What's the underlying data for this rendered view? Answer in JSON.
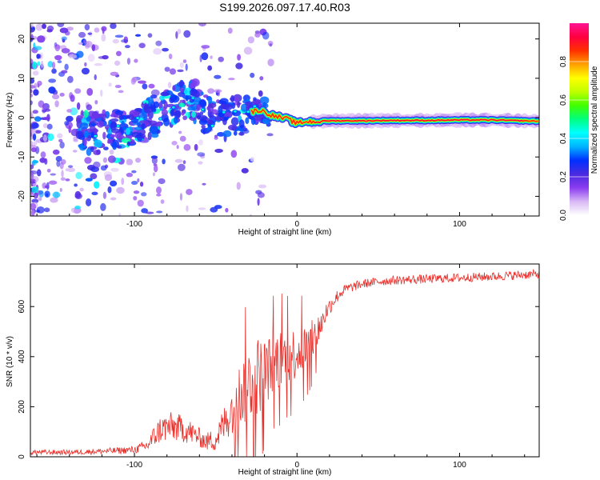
{
  "title": "S199.2026.097.17.40.R03",
  "colors": {
    "signal_line": "#e8302b",
    "axis": "#000000",
    "background": "#ffffff"
  },
  "chart_data": [
    {
      "type": "heatmap",
      "title": "S199.2026.097.17.40.R03",
      "xlabel": "Height of straight line (km)",
      "ylabel": "Frequency (Hz)",
      "xlim": [
        -164,
        149
      ],
      "ylim": [
        -25,
        24
      ],
      "x_ticks": [
        -100,
        0,
        100
      ],
      "x_tick_labels": [
        "-100",
        "0",
        "100"
      ],
      "y_ticks": [
        -20,
        -10,
        0,
        10,
        20
      ],
      "y_tick_labels": [
        "-20",
        "-10",
        "0",
        "10",
        "20"
      ],
      "colorbar": {
        "label": "Normalized spectral amplitude",
        "range": [
          0,
          1
        ],
        "ticks": [
          0,
          0.2,
          0.4,
          0.6,
          0.8
        ],
        "tick_labels": [
          "0.0",
          "0.2",
          "0.4",
          "0.6",
          "0.8"
        ],
        "colormap": [
          "#ffffff",
          "#d8b8f5",
          "#8a3cf0",
          "#4a2ae0",
          "#0030ff",
          "#00b4ff",
          "#00ffff",
          "#00ff80",
          "#40ff00",
          "#c0ff00",
          "#ffff00",
          "#ffa000",
          "#ff3000",
          "#ff0040",
          "#ff1493"
        ]
      },
      "ridge": {
        "description_points_x": [
          -125,
          -110,
          -95,
          -80,
          -65,
          -50,
          -40,
          -30,
          -25,
          -20,
          -15,
          -10,
          -5,
          0,
          5,
          10,
          20,
          40,
          60,
          80,
          100,
          120,
          140,
          148
        ],
        "description_points_y": [
          -4,
          -3,
          -1,
          2,
          5,
          -1,
          0,
          1,
          2,
          1.5,
          0.5,
          0,
          -0.5,
          -1.5,
          -1,
          -1,
          -0.8,
          -0.8,
          -0.7,
          -0.7,
          -0.6,
          -0.6,
          -0.8,
          -0.9
        ],
        "amplitude": [
          0.2,
          0.25,
          0.3,
          0.3,
          0.3,
          0.3,
          0.35,
          0.45,
          0.55,
          0.65,
          0.75,
          0.85,
          0.85,
          0.9,
          0.9,
          0.95,
          0.95,
          0.9,
          0.9,
          0.85,
          0.8,
          0.8,
          0.75,
          0.7
        ]
      }
    },
    {
      "type": "line",
      "xlabel": "Height of straight line (km)",
      "ylabel": "SNR (10 * v/v)",
      "xlim": [
        -164,
        149
      ],
      "ylim": [
        0,
        770
      ],
      "x_ticks": [
        -100,
        0,
        100
      ],
      "x_tick_labels": [
        "-100",
        "0",
        "100"
      ],
      "y_ticks": [
        0,
        200,
        400,
        600
      ],
      "y_tick_labels": [
        "0",
        "200",
        "400",
        "600"
      ],
      "series": [
        {
          "name": "SNR",
          "x": [
            -164,
            -140,
            -120,
            -100,
            -92,
            -88,
            -84,
            -78,
            -72,
            -66,
            -62,
            -56,
            -50,
            -44,
            -38,
            -34,
            -30,
            -28,
            -26,
            -22,
            -18,
            -14,
            -10,
            -6,
            -2,
            0,
            2,
            6,
            10,
            14,
            18,
            22,
            26,
            30,
            40,
            50,
            60,
            80,
            100,
            120,
            149
          ],
          "base": [
            18,
            18,
            22,
            28,
            45,
            80,
            110,
            120,
            115,
            100,
            85,
            60,
            70,
            140,
            220,
            260,
            290,
            310,
            320,
            330,
            350,
            380,
            390,
            400,
            410,
            420,
            425,
            440,
            470,
            520,
            580,
            620,
            650,
            670,
            690,
            700,
            705,
            710,
            715,
            720,
            730
          ],
          "noise": [
            10,
            10,
            12,
            15,
            25,
            45,
            55,
            60,
            55,
            50,
            40,
            35,
            50,
            80,
            110,
            140,
            150,
            160,
            170,
            150,
            130,
            120,
            120,
            110,
            110,
            100,
            100,
            90,
            80,
            60,
            40,
            30,
            25,
            20,
            18,
            18,
            18,
            18,
            18,
            18,
            18
          ]
        }
      ]
    }
  ]
}
